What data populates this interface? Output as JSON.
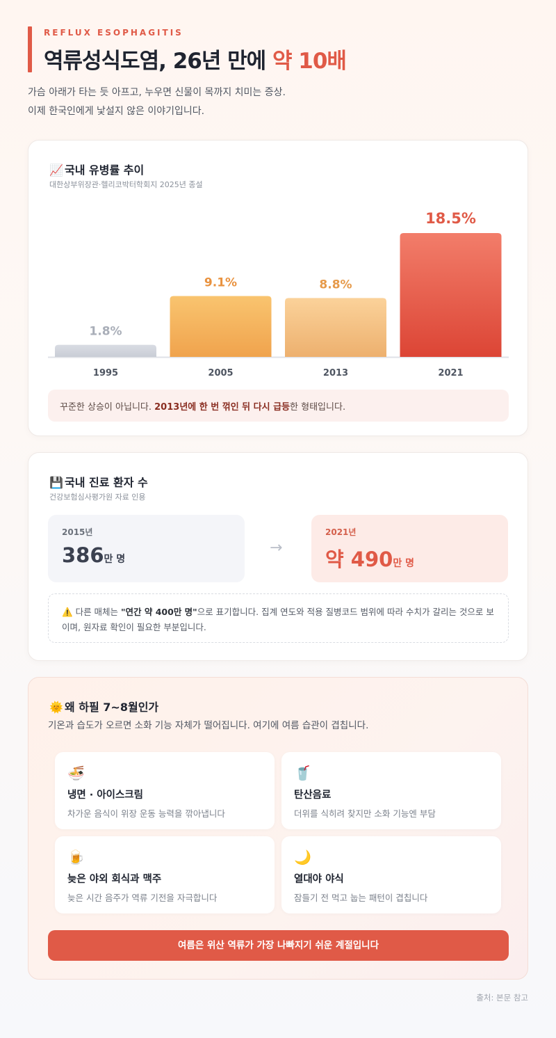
{
  "header": {
    "eyebrow": "REFLUX ESOPHAGITIS",
    "title_main": "역류성식도염, 26년 만에 ",
    "title_accent": "약 10배",
    "intro_line1": "가슴 아래가 타는 듯 아프고, 누우면 신물이 목까지 치미는 증상.",
    "intro_line2": "이제 한국인에게 낯설지 않은 이야기입니다."
  },
  "prevalence": {
    "emoji": "📈",
    "title": "국내 유병률 추이",
    "source": "대한상부위장관·헬리코박터학회지 2025년 종설",
    "callout_pre": "꾸준한 상승이 아닙니다. ",
    "callout_bold": "2013년에 한 번 꺾인 뒤 다시 급등",
    "callout_post": "한 형태입니다."
  },
  "chart_data": {
    "type": "bar",
    "categories": [
      "1995",
      "2005",
      "2013",
      "2021"
    ],
    "values": [
      1.8,
      9.1,
      8.8,
      18.5
    ],
    "labels": [
      "1.8%",
      "9.1%",
      "8.8%",
      "18.5%"
    ],
    "title": "국내 유병률 추이",
    "xlabel": "",
    "ylabel": "",
    "ylim": [
      0,
      18.5
    ],
    "grid": false,
    "legend": "none",
    "colors": {
      "1995": [
        "#d9dce3",
        "#c9cdd6"
      ],
      "2005": [
        "#f9c46f",
        "#f0a34d"
      ],
      "2013": [
        "#fbd29a",
        "#edb06e"
      ],
      "2021": [
        "#f27d6a",
        "#dc4535"
      ]
    },
    "label_colors": [
      "#a9aeb8",
      "#e9923f",
      "#e69a4a",
      "#e05a47"
    ]
  },
  "patients": {
    "emoji": "💾",
    "title": "국내 진료 환자 수",
    "source": "건강보험심사평가원 자료 인용",
    "old_year": "2015년",
    "old_value": "386",
    "old_unit": "만 명",
    "arrow": "→",
    "new_year": "2021년",
    "new_value": "약 490",
    "new_unit": "만 명",
    "note_icon": "⚠️",
    "note_pre": "다른 매체는 ",
    "note_bold": "\"연간 약 400만 명\"",
    "note_post": "으로 표기합니다. 집계 연도와 적용 질병코드 범위에 따라 수치가 갈리는 것으로 보이며, 원자료 확인이 필요한 부분입니다."
  },
  "summer": {
    "emoji": "🌞",
    "title": "왜 하필 7~8월인가",
    "subtitle": "기온과 습도가 오르면 소화 기능 자체가 떨어집니다. 여기에 여름 습관이 겹칩니다.",
    "tiles": [
      {
        "icon": "🍜",
        "title": "냉면 · 아이스크림",
        "desc": "차가운 음식이 위장 운동 능력을 깎아냅니다"
      },
      {
        "icon": "🥤",
        "title": "탄산음료",
        "desc": "더위를 식히려 찾지만 소화 기능엔 부담"
      },
      {
        "icon": "🍺",
        "title": "늦은 야외 회식과 맥주",
        "desc": "늦은 시간 음주가 역류 기전을 자극합니다"
      },
      {
        "icon": "🌙",
        "title": "열대야 야식",
        "desc": "잠들기 전 먹고 눕는 패턴이 겹칩니다"
      }
    ],
    "cta": "여름은 위산 역류가 가장 나빠지기 쉬운 계절입니다"
  },
  "footer": {
    "source": "출처: 본문 참고"
  }
}
